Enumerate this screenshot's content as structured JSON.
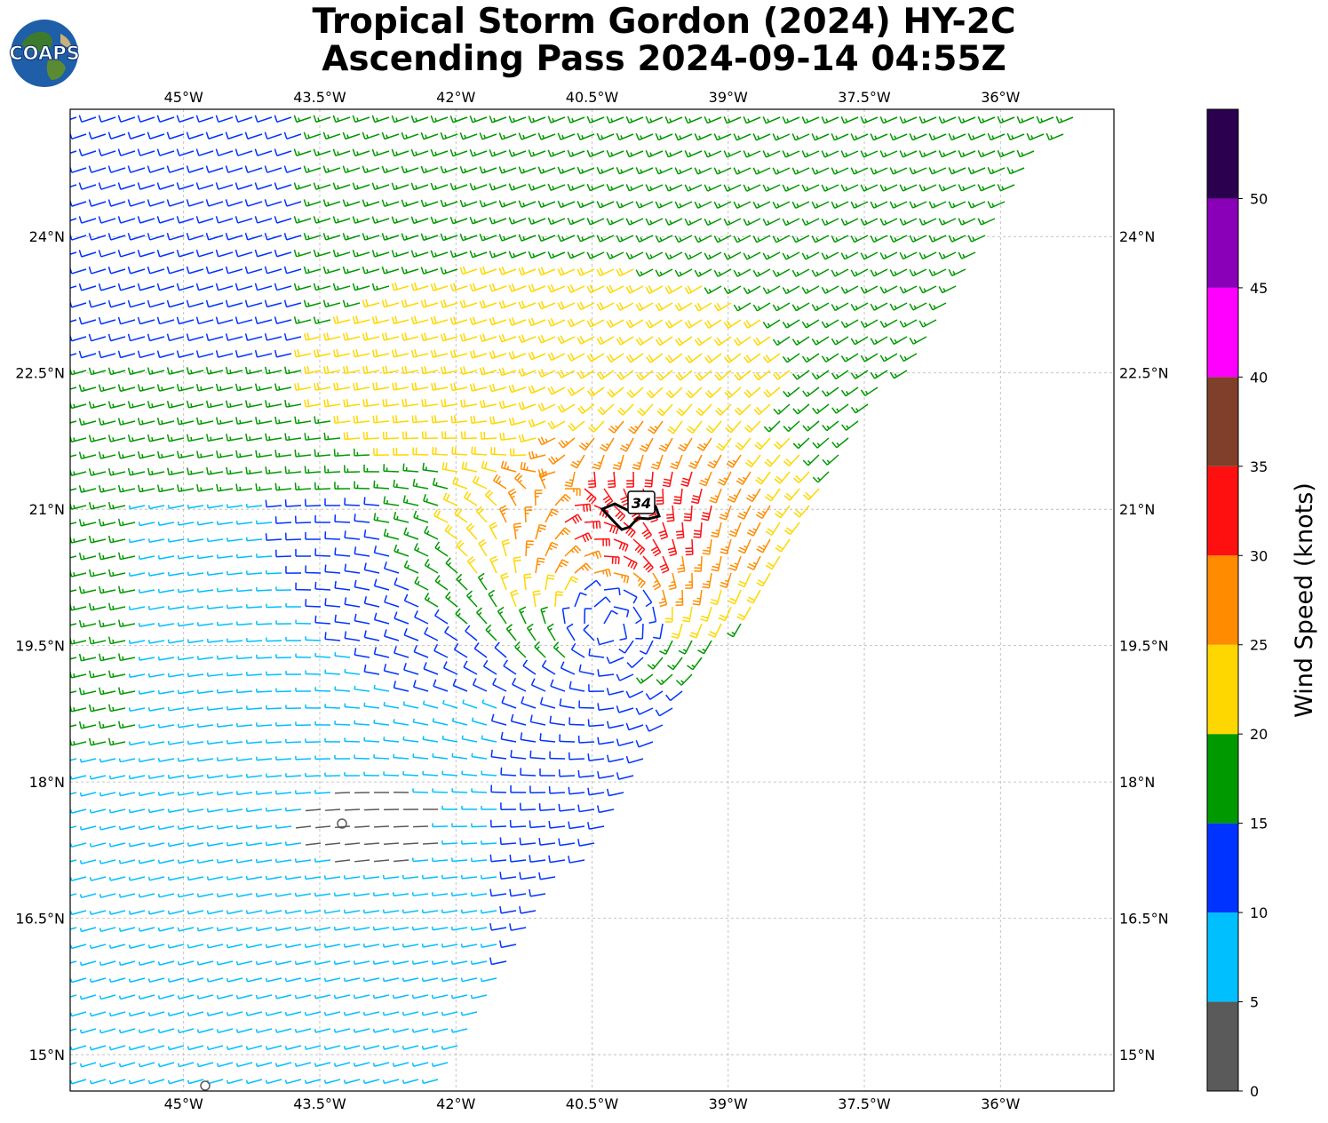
{
  "title": {
    "line1": "Tropical Storm Gordon (2024) HY-2C",
    "line2": "Ascending Pass 2024-09-14 04:55Z"
  },
  "logo": {
    "text": "COAPS",
    "icon": "globe-logo-icon"
  },
  "map": {
    "lon_ticks": [
      "45°W",
      "43.5°W",
      "42°W",
      "40.5°W",
      "39°W",
      "37.5°W",
      "36°W"
    ],
    "lat_ticks": [
      "24°N",
      "22.5°N",
      "21°N",
      "19.5°N",
      "18°N",
      "16.5°N",
      "15°N"
    ],
    "lon_values": [
      -45,
      -43.5,
      -42,
      -40.5,
      -39,
      -37.5,
      -36
    ],
    "lat_values": [
      24,
      22.5,
      21,
      19.5,
      18,
      16.5,
      15
    ],
    "lon_range": [
      -46.25,
      -34.75
    ],
    "lat_range": [
      14.6,
      25.4
    ],
    "storm_center_lon": -40.3,
    "storm_center_lat": 19.7,
    "wind_contour_label": "34"
  },
  "colorbar": {
    "label": "Wind Speed (knots)",
    "ticks": [
      "0",
      "5",
      "10",
      "15",
      "20",
      "25",
      "30",
      "35",
      "40",
      "45",
      "50"
    ],
    "bins": [
      {
        "min": 0,
        "max": 5,
        "color": "#5a5a5a"
      },
      {
        "min": 5,
        "max": 10,
        "color": "#00bfff"
      },
      {
        "min": 10,
        "max": 15,
        "color": "#0033ff"
      },
      {
        "min": 15,
        "max": 20,
        "color": "#009900"
      },
      {
        "min": 20,
        "max": 25,
        "color": "#ffd700"
      },
      {
        "min": 25,
        "max": 30,
        "color": "#ff8c00"
      },
      {
        "min": 30,
        "max": 35,
        "color": "#ff1010"
      },
      {
        "min": 35,
        "max": 40,
        "color": "#7f3f2a"
      },
      {
        "min": 40,
        "max": 45,
        "color": "#ff00ff"
      },
      {
        "min": 45,
        "max": 50,
        "color": "#8a00b8"
      },
      {
        "min": 50,
        "max": 55,
        "color": "#2a004f"
      }
    ]
  }
}
